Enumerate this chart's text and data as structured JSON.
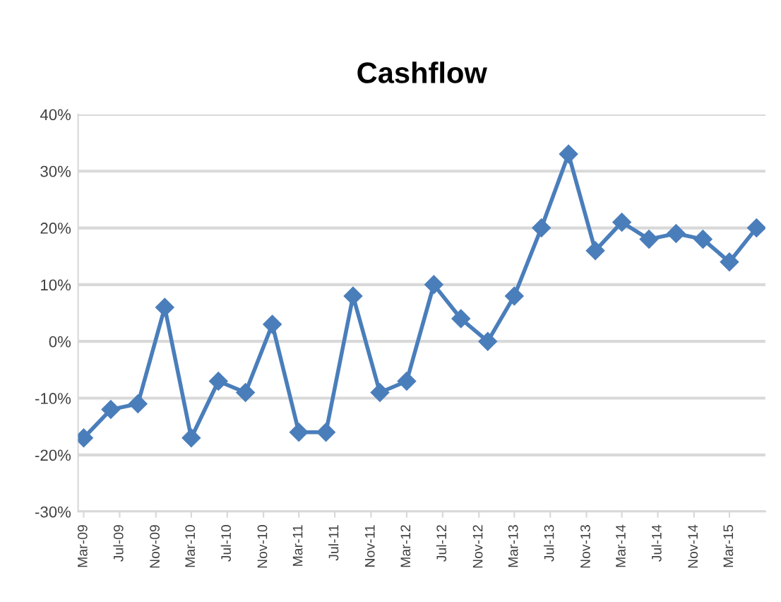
{
  "chart_data": {
    "type": "line",
    "title": "Cashflow",
    "x": [
      "2009-03",
      "2009-06",
      "2009-09",
      "2009-12",
      "2010-03",
      "2010-06",
      "2010-09",
      "2010-12",
      "2011-03",
      "2011-06",
      "2011-09",
      "2011-12",
      "2012-03",
      "2012-06",
      "2012-09",
      "2012-12",
      "2013-03",
      "2013-06",
      "2013-09",
      "2013-12",
      "2014-03",
      "2014-06",
      "2014-09",
      "2014-12",
      "2015-03",
      "2015-06"
    ],
    "series": [
      {
        "color": "#4a7ebb",
        "values": [
          -17,
          -12,
          -11,
          6,
          -17,
          -7,
          -9,
          3,
          -16,
          -16,
          8,
          -9,
          -7,
          10,
          4,
          0,
          8,
          20,
          33,
          16,
          21,
          18,
          19,
          18,
          14,
          20
        ]
      }
    ],
    "xlim": [
      "2009-02-10",
      "2015-07-01"
    ],
    "xticks": [
      {
        "value": "2009-03",
        "label": "Mar-09"
      },
      {
        "value": "2009-07",
        "label": "Jul-09"
      },
      {
        "value": "2009-11",
        "label": "Nov-09"
      },
      {
        "value": "2010-03",
        "label": "Mar-10"
      },
      {
        "value": "2010-07",
        "label": "Jul-10"
      },
      {
        "value": "2010-11",
        "label": "Nov-10"
      },
      {
        "value": "2011-03",
        "label": "Mar-11"
      },
      {
        "value": "2011-07",
        "label": "Jul-11"
      },
      {
        "value": "2011-11",
        "label": "Nov-11"
      },
      {
        "value": "2012-03",
        "label": "Mar-12"
      },
      {
        "value": "2012-07",
        "label": "Jul-12"
      },
      {
        "value": "2012-11",
        "label": "Nov-12"
      },
      {
        "value": "2013-03",
        "label": "Mar-13"
      },
      {
        "value": "2013-07",
        "label": "Jul-13"
      },
      {
        "value": "2013-11",
        "label": "Nov-13"
      },
      {
        "value": "2014-03",
        "label": "Mar-14"
      },
      {
        "value": "2014-07",
        "label": "Jul-14"
      },
      {
        "value": "2014-11",
        "label": "Nov-14"
      },
      {
        "value": "2015-03",
        "label": "Mar-15"
      }
    ],
    "ylim": [
      -30,
      40
    ],
    "yticks": [
      {
        "value": -30,
        "label": "-30%"
      },
      {
        "value": -20,
        "label": "-20%"
      },
      {
        "value": -10,
        "label": "-10%"
      },
      {
        "value": 0,
        "label": "0%"
      },
      {
        "value": 10,
        "label": "10%"
      },
      {
        "value": 20,
        "label": "20%"
      },
      {
        "value": 30,
        "label": "30%"
      },
      {
        "value": 40,
        "label": "40%"
      }
    ],
    "grid": "y",
    "marker": "diamond",
    "line_style": "solid",
    "legend": false
  }
}
